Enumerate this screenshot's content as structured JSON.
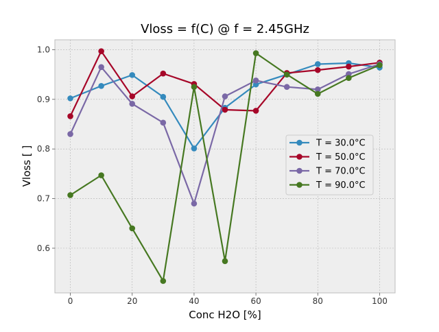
{
  "chart_data": {
    "type": "line",
    "title": "Vloss = f(C) @ f = 2.45GHz",
    "xlabel": "Conc H2O [%]",
    "ylabel": "Vloss [ ]",
    "xlim": [
      -5,
      105
    ],
    "ylim": [
      0.51,
      1.02
    ],
    "xticks": [
      0,
      20,
      40,
      60,
      80,
      100
    ],
    "xtick_labels": [
      "0",
      "20",
      "40",
      "60",
      "80",
      "100"
    ],
    "yticks": [
      0.6,
      0.7,
      0.8,
      0.9,
      1.0
    ],
    "ytick_labels": [
      "0.6",
      "0.7",
      "0.8",
      "0.9",
      "1.0"
    ],
    "grid": true,
    "legend_position": "center-right",
    "background": "#EEEEEE",
    "x": [
      0,
      10,
      20,
      30,
      40,
      50,
      60,
      70,
      80,
      90,
      100
    ],
    "series": [
      {
        "name": "T = 30.0°C",
        "color": "#348ABD",
        "values": [
          0.902,
          0.927,
          0.949,
          0.905,
          0.801,
          0.883,
          0.93,
          0.95,
          0.971,
          0.973,
          0.964
        ]
      },
      {
        "name": "T = 50.0°C",
        "color": "#A60628",
        "values": [
          0.866,
          0.997,
          0.906,
          0.952,
          0.931,
          0.879,
          0.877,
          0.953,
          0.959,
          0.966,
          0.974
        ]
      },
      {
        "name": "T = 70.0°C",
        "color": "#7A68A6",
        "values": [
          0.83,
          0.965,
          0.891,
          0.853,
          0.69,
          0.906,
          0.938,
          0.925,
          0.92,
          0.951,
          0.971
        ]
      },
      {
        "name": "T = 90.0°C",
        "color": "#467821",
        "values": [
          0.707,
          0.747,
          0.64,
          0.534,
          0.925,
          0.574,
          0.993,
          0.95,
          0.911,
          0.943,
          0.969
        ]
      }
    ]
  }
}
